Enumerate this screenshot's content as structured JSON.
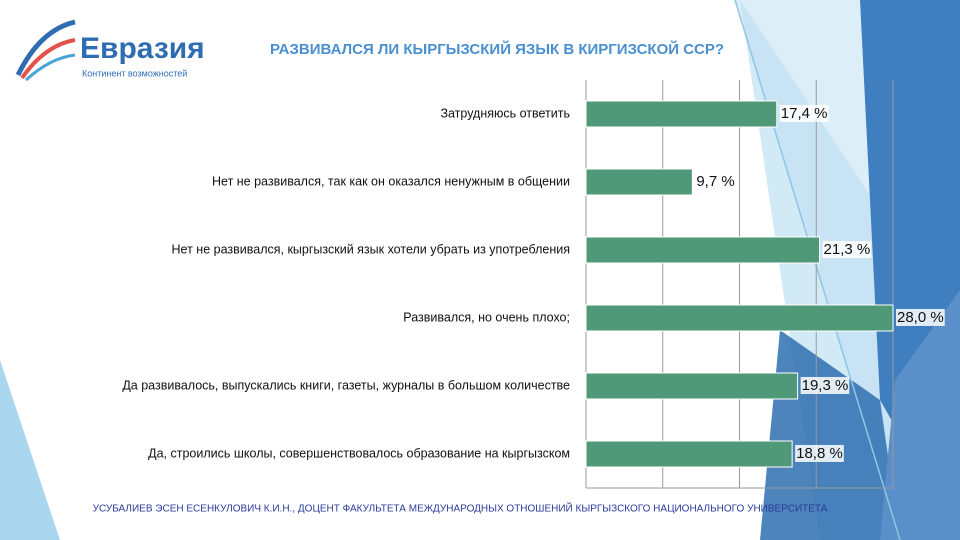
{
  "logo": {
    "name": "Евразия",
    "tagline": "Континент возможностей"
  },
  "footer": "УСУБАЛИЕВ ЭСЕН ЕСЕНКУЛОВИЧ К.И.Н., ДОЦЕНТ ФАКУЛЬТЕТА МЕЖДУНАРОДНЫХ ОТНОШЕНИЙ КЫРГЫЗСКОГО НАЦИОНАЛЬНОГО УНИВЕРСИТЕТА",
  "chart_data": {
    "type": "hbar",
    "title": "РАЗВИВАЛСЯ ЛИ КЫРГЫЗСКИЙ ЯЗЫК В КИРГИЗСКОЙ ССР?",
    "categories": [
      "Затрудняюсь ответить",
      "Нет не развивался, так как он оказался ненужным в общении",
      "Нет не развивался, кыргызский язык хотели убрать из употребления",
      "Развивался, но очень плохо;",
      "Да развивалось, выпускались книги, газеты, журналы в большом количестве",
      "Да, строились школы, совершенствовалось образование на кыргызском"
    ],
    "values": [
      17.4,
      9.7,
      21.3,
      28.0,
      19.3,
      18.8
    ],
    "value_labels": [
      "17,4 %",
      "9,7 %",
      "21,3 %",
      "28,0 %",
      "19,3 %",
      "18,8 %"
    ],
    "color": "#4f9878",
    "xlim": [
      0,
      28
    ],
    "xticks": [
      0,
      7,
      14,
      21,
      28
    ],
    "grid": true
  }
}
